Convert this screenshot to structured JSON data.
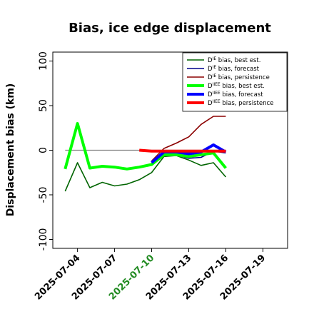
{
  "chart_data": {
    "type": "line",
    "title": "Bias, ice edge displacement",
    "ylabel": "Displacement bias (km)",
    "xlabel": "",
    "ylim": [
      -110,
      110
    ],
    "xlim": [
      "2025-07-02",
      "2025-07-21"
    ],
    "yticks": [
      100,
      50,
      0,
      -50,
      -100
    ],
    "xticks": [
      {
        "date": "2025-07-04",
        "label": "2025-07-04",
        "color": "#000000"
      },
      {
        "date": "2025-07-07",
        "label": "2025-07-07",
        "color": "#000000"
      },
      {
        "date": "2025-07-10",
        "label": "2025-07-10",
        "color": "#228B22"
      },
      {
        "date": "2025-07-13",
        "label": "2025-07-13",
        "color": "#000000"
      },
      {
        "date": "2025-07-16",
        "label": "2025-07-16",
        "color": "#000000"
      },
      {
        "date": "2025-07-19",
        "label": "2025-07-19",
        "color": "#000000"
      }
    ],
    "zero_line": {
      "y": 0,
      "from": "2025-07-03",
      "to": "2025-07-16",
      "color": "#808080"
    },
    "legend_position": "top-right",
    "series": [
      {
        "name": "D^IE bias, best est.",
        "sup": "IE",
        "rest": " bias, best est.",
        "color": "#006400",
        "width": 2,
        "style": "thin",
        "x": [
          "2025-07-03",
          "2025-07-04",
          "2025-07-05",
          "2025-07-06",
          "2025-07-07",
          "2025-07-08",
          "2025-07-09",
          "2025-07-10",
          "2025-07-11",
          "2025-07-12",
          "2025-07-13",
          "2025-07-14",
          "2025-07-15",
          "2025-07-16"
        ],
        "y": [
          -46,
          -14,
          -42,
          -36,
          -40,
          -38,
          -33,
          -25,
          -7,
          -6,
          -11,
          -17,
          -14,
          -30
        ]
      },
      {
        "name": "D^IE bias, forecast",
        "sup": "IE",
        "rest": " bias, forecast",
        "color": "#00008B",
        "width": 2,
        "style": "thin",
        "x": [
          "2025-07-10",
          "2025-07-11",
          "2025-07-12",
          "2025-07-13",
          "2025-07-14",
          "2025-07-15",
          "2025-07-16"
        ],
        "y": [
          -14,
          -4,
          -5,
          -9,
          -8,
          -1,
          -3
        ]
      },
      {
        "name": "D^IE bias, persistence",
        "sup": "IE",
        "rest": " bias, persistence",
        "color": "#8B0000",
        "width": 2,
        "style": "thin",
        "x": [
          "2025-07-10",
          "2025-07-11",
          "2025-07-12",
          "2025-07-13",
          "2025-07-14",
          "2025-07-15",
          "2025-07-16"
        ],
        "y": [
          -12,
          2,
          8,
          15,
          29,
          38,
          38
        ]
      },
      {
        "name": "D^IIEE bias, best est.",
        "sup": "IIEE",
        "rest": " bias, best est.",
        "color": "#00FF00",
        "width": 4,
        "style": "thick",
        "x": [
          "2025-07-03",
          "2025-07-04",
          "2025-07-05",
          "2025-07-06",
          "2025-07-07",
          "2025-07-08",
          "2025-07-09",
          "2025-07-10",
          "2025-07-11",
          "2025-07-12",
          "2025-07-13",
          "2025-07-14",
          "2025-07-15",
          "2025-07-16"
        ],
        "y": [
          -21,
          30,
          -20,
          -18,
          -19,
          -21,
          -19,
          -16,
          -5,
          -5,
          -7,
          -5,
          -3,
          -20
        ]
      },
      {
        "name": "D^IIEE bias, forecast",
        "sup": "IIEE",
        "rest": " bias, forecast",
        "color": "#0000FF",
        "width": 4,
        "style": "thick",
        "x": [
          "2025-07-10",
          "2025-07-11",
          "2025-07-12",
          "2025-07-13",
          "2025-07-14",
          "2025-07-15",
          "2025-07-16"
        ],
        "y": [
          -14,
          -2,
          -2,
          -4,
          -2,
          6,
          -2
        ]
      },
      {
        "name": "D^IIEE bias, persistence",
        "sup": "IIEE",
        "rest": " bias, persistence",
        "color": "#FF0000",
        "width": 4,
        "style": "thick",
        "x": [
          "2025-07-09",
          "2025-07-10",
          "2025-07-11",
          "2025-07-12",
          "2025-07-13",
          "2025-07-14",
          "2025-07-15",
          "2025-07-16"
        ],
        "y": [
          0,
          -1,
          -1,
          -1,
          -1,
          -1,
          -1,
          -1
        ]
      }
    ]
  }
}
